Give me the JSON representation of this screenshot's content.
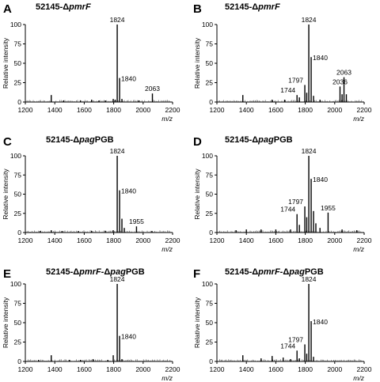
{
  "chart_data": [
    {
      "type": "bar",
      "panel_label": "A",
      "title_prefix": "52145-Δ",
      "title_italic": "pmrF",
      "title_suffix": "",
      "xlabel": "m/z",
      "ylabel": "Relative intensity",
      "xlim": [
        1200,
        2200
      ],
      "ylim": [
        0,
        100
      ],
      "x_ticks": [
        1200,
        1400,
        1600,
        1800,
        2000,
        2200
      ],
      "y_ticks": [
        0,
        25,
        50,
        75,
        100
      ],
      "grid": false,
      "peaks": [
        {
          "mz": 1376,
          "intensity": 9
        },
        {
          "mz": 1460,
          "intensity": 2
        },
        {
          "mz": 1575,
          "intensity": 2
        },
        {
          "mz": 1650,
          "intensity": 3
        },
        {
          "mz": 1700,
          "intensity": 2
        },
        {
          "mz": 1744,
          "intensity": 2
        },
        {
          "mz": 1797,
          "intensity": 4
        },
        {
          "mz": 1810,
          "intensity": 3
        },
        {
          "mz": 1824,
          "intensity": 100
        },
        {
          "mz": 1840,
          "intensity": 31
        },
        {
          "mz": 1856,
          "intensity": 4
        },
        {
          "mz": 1970,
          "intensity": 2
        },
        {
          "mz": 2063,
          "intensity": 11
        }
      ],
      "annotations": [
        {
          "text": "1824",
          "mz": 1824,
          "intensity": 100
        },
        {
          "text": "1840",
          "mz": 1840,
          "intensity": 31
        },
        {
          "text": "2063",
          "mz": 2063,
          "intensity": 11
        }
      ]
    },
    {
      "type": "bar",
      "panel_label": "B",
      "title_prefix": "52145-Δ",
      "title_italic": "pmrF",
      "title_suffix": "",
      "xlabel": "m/z",
      "ylabel": "Relative intensity",
      "xlim": [
        1200,
        2200
      ],
      "ylim": [
        0,
        100
      ],
      "x_ticks": [
        1200,
        1400,
        1600,
        1800,
        2000,
        2200
      ],
      "y_ticks": [
        0,
        25,
        50,
        75,
        100
      ],
      "grid": false,
      "peaks": [
        {
          "mz": 1376,
          "intensity": 9
        },
        {
          "mz": 1575,
          "intensity": 3
        },
        {
          "mz": 1660,
          "intensity": 3
        },
        {
          "mz": 1744,
          "intensity": 9
        },
        {
          "mz": 1760,
          "intensity": 6
        },
        {
          "mz": 1797,
          "intensity": 22
        },
        {
          "mz": 1810,
          "intensity": 12
        },
        {
          "mz": 1824,
          "intensity": 100
        },
        {
          "mz": 1840,
          "intensity": 58
        },
        {
          "mz": 1856,
          "intensity": 8
        },
        {
          "mz": 1900,
          "intensity": 3
        },
        {
          "mz": 2036,
          "intensity": 20
        },
        {
          "mz": 2050,
          "intensity": 10
        },
        {
          "mz": 2063,
          "intensity": 32
        },
        {
          "mz": 2079,
          "intensity": 10
        }
      ],
      "annotations": [
        {
          "text": "1824",
          "mz": 1824,
          "intensity": 100
        },
        {
          "text": "1840",
          "mz": 1840,
          "intensity": 58
        },
        {
          "text": "1797",
          "mz": 1797,
          "intensity": 22
        },
        {
          "text": "1744",
          "mz": 1744,
          "intensity": 9
        },
        {
          "text": "2036",
          "mz": 2036,
          "intensity": 20
        },
        {
          "text": "2063",
          "mz": 2063,
          "intensity": 32
        }
      ]
    },
    {
      "type": "bar",
      "panel_label": "C",
      "title_prefix": "52145-Δ",
      "title_italic": "pag",
      "title_suffix": "PGB",
      "xlabel": "m/z",
      "ylabel": "Relative intensity",
      "xlim": [
        1200,
        2200
      ],
      "ylim": [
        0,
        100
      ],
      "x_ticks": [
        1200,
        1400,
        1600,
        1800,
        2000,
        2200
      ],
      "y_ticks": [
        0,
        25,
        50,
        75,
        100
      ],
      "grid": false,
      "peaks": [
        {
          "mz": 1300,
          "intensity": 2
        },
        {
          "mz": 1376,
          "intensity": 3
        },
        {
          "mz": 1450,
          "intensity": 2
        },
        {
          "mz": 1560,
          "intensity": 2
        },
        {
          "mz": 1650,
          "intensity": 2
        },
        {
          "mz": 1744,
          "intensity": 2
        },
        {
          "mz": 1797,
          "intensity": 3
        },
        {
          "mz": 1824,
          "intensity": 100
        },
        {
          "mz": 1840,
          "intensity": 55
        },
        {
          "mz": 1856,
          "intensity": 18
        },
        {
          "mz": 1872,
          "intensity": 6
        },
        {
          "mz": 1955,
          "intensity": 8
        },
        {
          "mz": 2060,
          "intensity": 2
        }
      ],
      "annotations": [
        {
          "text": "1824",
          "mz": 1824,
          "intensity": 100
        },
        {
          "text": "1840",
          "mz": 1840,
          "intensity": 55
        },
        {
          "text": "1955",
          "mz": 1955,
          "intensity": 8
        }
      ]
    },
    {
      "type": "bar",
      "panel_label": "D",
      "title_prefix": "52145-Δ",
      "title_italic": "pag",
      "title_suffix": "PGB",
      "xlabel": "m/z",
      "ylabel": "Relative intensity",
      "xlim": [
        1200,
        2200
      ],
      "ylim": [
        0,
        100
      ],
      "x_ticks": [
        1200,
        1400,
        1600,
        1800,
        2000,
        2200
      ],
      "y_ticks": [
        0,
        25,
        50,
        75,
        100
      ],
      "grid": false,
      "peaks": [
        {
          "mz": 1330,
          "intensity": 3
        },
        {
          "mz": 1400,
          "intensity": 4
        },
        {
          "mz": 1500,
          "intensity": 4
        },
        {
          "mz": 1600,
          "intensity": 4
        },
        {
          "mz": 1700,
          "intensity": 4
        },
        {
          "mz": 1744,
          "intensity": 24
        },
        {
          "mz": 1760,
          "intensity": 10
        },
        {
          "mz": 1797,
          "intensity": 34
        },
        {
          "mz": 1810,
          "intensity": 20
        },
        {
          "mz": 1824,
          "intensity": 100
        },
        {
          "mz": 1840,
          "intensity": 70
        },
        {
          "mz": 1856,
          "intensity": 28
        },
        {
          "mz": 1872,
          "intensity": 12
        },
        {
          "mz": 1900,
          "intensity": 6
        },
        {
          "mz": 1955,
          "intensity": 26
        },
        {
          "mz": 2050,
          "intensity": 4
        },
        {
          "mz": 2150,
          "intensity": 3
        }
      ],
      "annotations": [
        {
          "text": "1824",
          "mz": 1824,
          "intensity": 100
        },
        {
          "text": "1840",
          "mz": 1840,
          "intensity": 70
        },
        {
          "text": "1797",
          "mz": 1797,
          "intensity": 34
        },
        {
          "text": "1744",
          "mz": 1744,
          "intensity": 24
        },
        {
          "text": "1955",
          "mz": 1955,
          "intensity": 26
        }
      ]
    },
    {
      "type": "bar",
      "panel_label": "E",
      "title_prefix": "52145-Δ",
      "title_italic": "pmrF",
      "title_suffix": "-Δ",
      "title_italic2": "pag",
      "title_suffix2": "PGB",
      "xlabel": "m/z",
      "ylabel": "Relative intensity",
      "xlim": [
        1200,
        2200
      ],
      "ylim": [
        0,
        100
      ],
      "x_ticks": [
        1200,
        1400,
        1600,
        1800,
        2000,
        2200
      ],
      "y_ticks": [
        0,
        25,
        50,
        75,
        100
      ],
      "grid": false,
      "peaks": [
        {
          "mz": 1290,
          "intensity": 2
        },
        {
          "mz": 1376,
          "intensity": 8
        },
        {
          "mz": 1500,
          "intensity": 2
        },
        {
          "mz": 1575,
          "intensity": 2
        },
        {
          "mz": 1660,
          "intensity": 3
        },
        {
          "mz": 1760,
          "intensity": 2
        },
        {
          "mz": 1797,
          "intensity": 8
        },
        {
          "mz": 1824,
          "intensity": 100
        },
        {
          "mz": 1840,
          "intensity": 33
        },
        {
          "mz": 1856,
          "intensity": 3
        }
      ],
      "annotations": [
        {
          "text": "1824",
          "mz": 1824,
          "intensity": 100
        },
        {
          "text": "1840",
          "mz": 1840,
          "intensity": 33
        }
      ]
    },
    {
      "type": "bar",
      "panel_label": "F",
      "title_prefix": "52145-Δ",
      "title_italic": "pmrF",
      "title_suffix": "-Δ",
      "title_italic2": "pag",
      "title_suffix2": "PGB",
      "xlabel": "m/z",
      "ylabel": "Relative intensity",
      "xlim": [
        1200,
        2200
      ],
      "ylim": [
        0,
        100
      ],
      "x_ticks": [
        1200,
        1400,
        1600,
        1800,
        2000,
        2200
      ],
      "y_ticks": [
        0,
        25,
        50,
        75,
        100
      ],
      "grid": false,
      "peaks": [
        {
          "mz": 1376,
          "intensity": 8
        },
        {
          "mz": 1500,
          "intensity": 4
        },
        {
          "mz": 1575,
          "intensity": 7
        },
        {
          "mz": 1650,
          "intensity": 5
        },
        {
          "mz": 1700,
          "intensity": 3
        },
        {
          "mz": 1744,
          "intensity": 14
        },
        {
          "mz": 1760,
          "intensity": 4
        },
        {
          "mz": 1797,
          "intensity": 22
        },
        {
          "mz": 1810,
          "intensity": 10
        },
        {
          "mz": 1824,
          "intensity": 100
        },
        {
          "mz": 1840,
          "intensity": 52
        },
        {
          "mz": 1856,
          "intensity": 6
        }
      ],
      "annotations": [
        {
          "text": "1824",
          "mz": 1824,
          "intensity": 100
        },
        {
          "text": "1840",
          "mz": 1840,
          "intensity": 52
        },
        {
          "text": "1797",
          "mz": 1797,
          "intensity": 22
        },
        {
          "text": "1744",
          "mz": 1744,
          "intensity": 14
        }
      ]
    }
  ]
}
